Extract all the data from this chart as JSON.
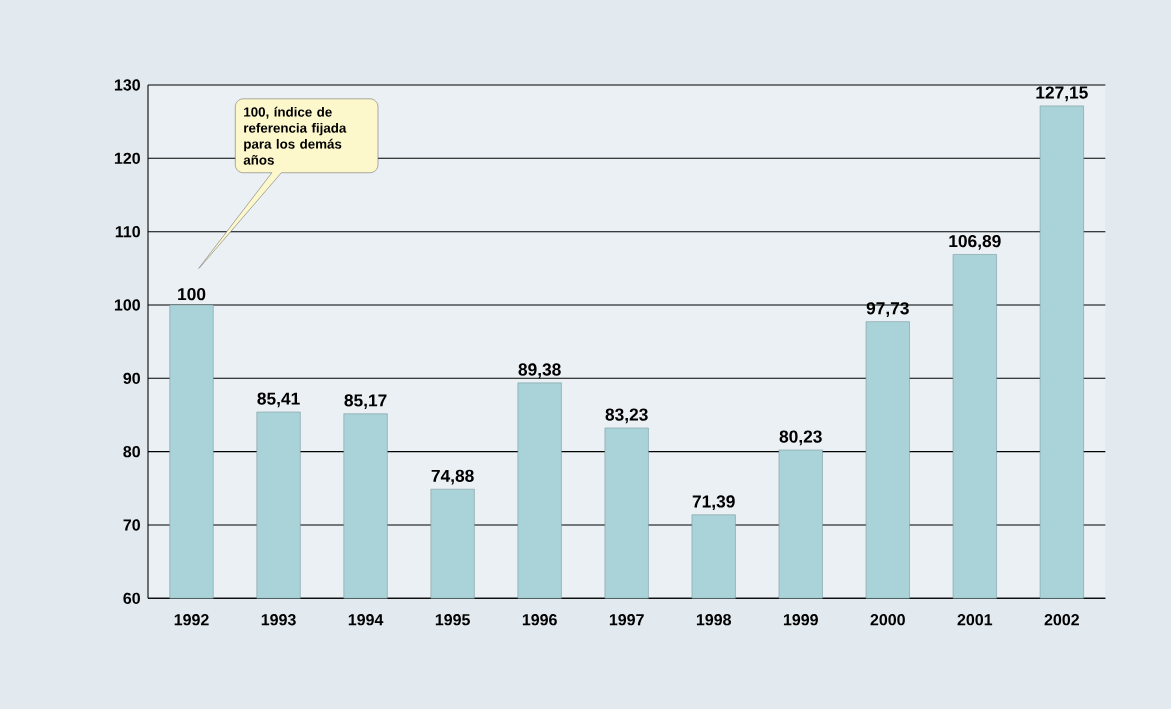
{
  "chart_data": {
    "type": "bar",
    "categories": [
      "1992",
      "1993",
      "1994",
      "1995",
      "1996",
      "1997",
      "1998",
      "1999",
      "2000",
      "2001",
      "2002"
    ],
    "values": [
      100,
      85.41,
      85.17,
      74.88,
      89.38,
      83.23,
      71.39,
      80.23,
      97.73,
      106.89,
      127.15
    ],
    "value_labels": [
      "100",
      "85,41",
      "85,17",
      "74,88",
      "89,38",
      "83,23",
      "71,39",
      "80,23",
      "97,73",
      "106,89",
      "127,15"
    ],
    "color": "#a9d3d8",
    "ylim": [
      60,
      130
    ],
    "yticks": [
      60,
      70,
      80,
      90,
      100,
      110,
      120,
      130
    ],
    "grid": "y",
    "annotations": [
      "100, índice de referencia fijada para los demás años"
    ]
  }
}
